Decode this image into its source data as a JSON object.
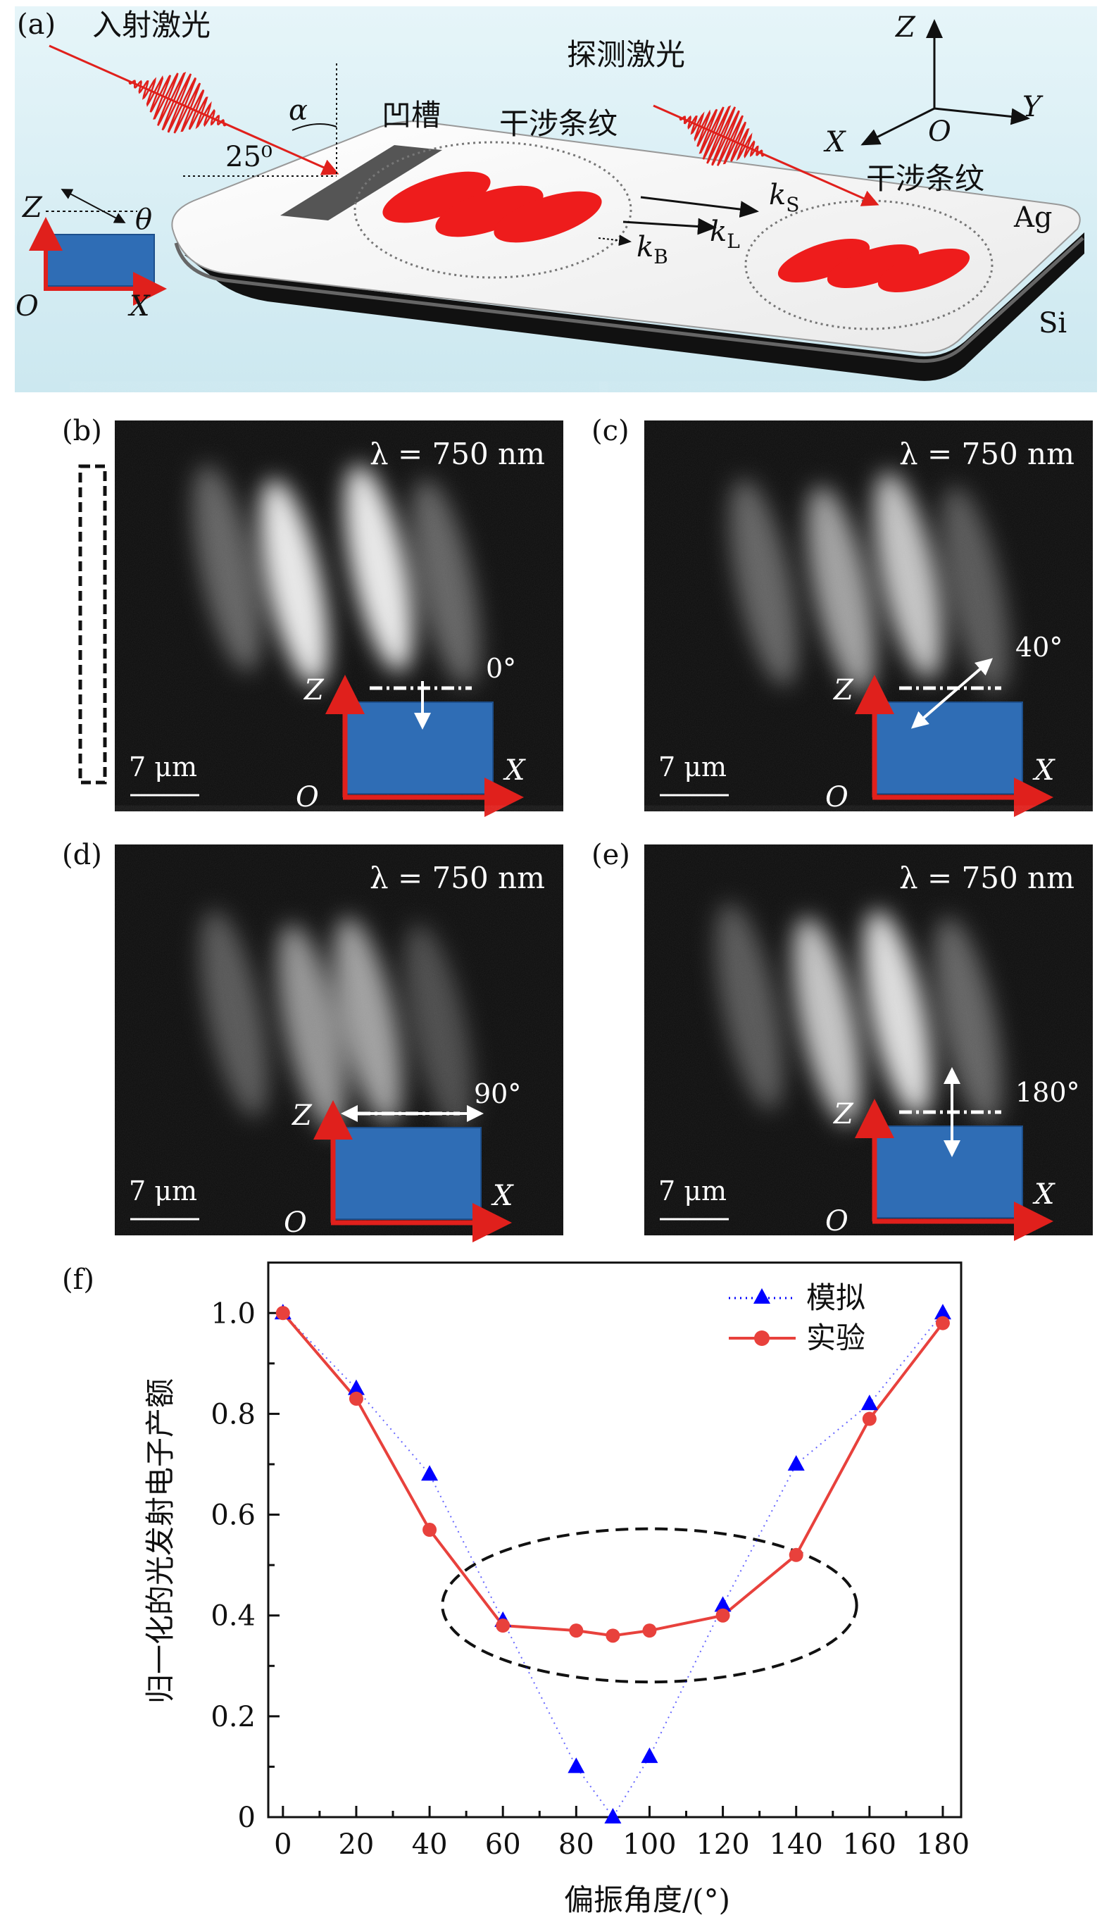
{
  "panel_a": {
    "label": "(a)",
    "incident_laser": "入射激光",
    "angle_25": "25⁰",
    "alpha": "α",
    "groove": "凹槽",
    "fringes_1": "干涉条纹",
    "probe_laser": "探测激光",
    "fringes_2": "干涉条纹",
    "ag": "Ag",
    "si": "Si",
    "k_s": "k",
    "k_s_sub": "S",
    "k_l": "k",
    "k_l_sub": "L",
    "k_b": "k",
    "k_b_sub": "B",
    "axes": {
      "z": "Z",
      "y": "Y",
      "x": "X",
      "o": "O"
    },
    "inset": {
      "z": "Z",
      "theta": "θ",
      "o": "O",
      "x": "X"
    },
    "colors": {
      "background": "#d9eff6",
      "laser": "#e0201c",
      "fringe": "#ee1c1c",
      "blue_box": "#2f6db5"
    }
  },
  "micrographs": [
    {
      "label": "(b)",
      "wavelength": "λ = 750 nm",
      "scale": "7 μm",
      "angle": "0°",
      "z": "Z",
      "x": "X",
      "o": "O"
    },
    {
      "label": "(c)",
      "wavelength": "λ = 750 nm",
      "scale": "7 μm",
      "angle": "40°",
      "z": "Z",
      "x": "X",
      "o": "O"
    },
    {
      "label": "(d)",
      "wavelength": "λ = 750 nm",
      "scale": "7 μm",
      "angle": "90°",
      "z": "Z",
      "x": "X",
      "o": "O"
    },
    {
      "label": "(e)",
      "wavelength": "λ = 750 nm",
      "scale": "7 μm",
      "angle": "180°",
      "z": "Z",
      "x": "X",
      "o": "O"
    }
  ],
  "chart_data": {
    "type": "line",
    "panel_label": "(f)",
    "xlabel": "偏振角度/(°)",
    "ylabel": "归一化的光发射电子产额",
    "xlim": [
      -4,
      185
    ],
    "ylim": [
      0,
      1.1
    ],
    "xticks": [
      0,
      20,
      40,
      60,
      80,
      100,
      120,
      140,
      160,
      180
    ],
    "xtick_labels": [
      "0",
      "20",
      "40",
      "60",
      "80",
      "100",
      "120",
      "140",
      "160",
      "180"
    ],
    "yticks": [
      0,
      0.2,
      0.4,
      0.6,
      0.8,
      1.0
    ],
    "ytick_labels": [
      "0",
      "0.2",
      "0.4",
      "0.6",
      "0.8",
      "1.0"
    ],
    "legend_position": "top-right",
    "series": [
      {
        "name": "模拟",
        "style": "dotted-triangle",
        "color": "#0000ff",
        "x": [
          0,
          20,
          40,
          60,
          80,
          90,
          100,
          120,
          140,
          160,
          180
        ],
        "y": [
          1.0,
          0.85,
          0.68,
          0.39,
          0.1,
          0.0,
          0.12,
          0.42,
          0.7,
          0.82,
          1.0
        ]
      },
      {
        "name": "实验",
        "style": "solid-circle",
        "color": "#e8413c",
        "x": [
          0,
          20,
          40,
          60,
          80,
          90,
          100,
          120,
          140,
          160,
          180
        ],
        "y": [
          1.0,
          0.83,
          0.57,
          0.38,
          0.37,
          0.36,
          0.37,
          0.4,
          0.52,
          0.79,
          0.98
        ]
      }
    ],
    "annotation_ellipse": {
      "cx": 100,
      "cy": 0.42,
      "rx": 56.5,
      "ry": 0.152
    }
  }
}
